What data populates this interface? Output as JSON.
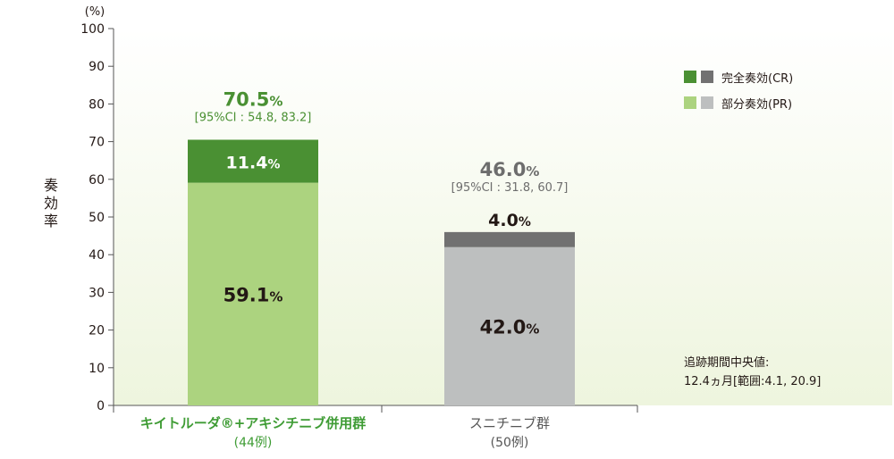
{
  "chart_data": {
    "type": "bar",
    "stacked": true,
    "y_unit": "(%)",
    "ylabel": "奏効率",
    "ylim": [
      0,
      100
    ],
    "yticks": [
      0,
      10,
      20,
      30,
      40,
      50,
      60,
      70,
      80,
      90,
      100
    ],
    "categories": [
      {
        "label": "キイトルーダ®+アキシチニブ併用群",
        "sub": "(44例)"
      },
      {
        "label": "スニチニブ群",
        "sub": "(50例)"
      }
    ],
    "series": [
      {
        "name": "部分奏効(PR)",
        "values": [
          59.1,
          42.0
        ],
        "labels": [
          "59.1",
          "42.0"
        ]
      },
      {
        "name": "完全奏効(CR)",
        "values": [
          11.4,
          4.0
        ],
        "labels": [
          "11.4",
          "4.0"
        ]
      }
    ],
    "totals": [
      {
        "value": 70.5,
        "label": "70.5",
        "ci": "[95%CI : 54.8, 83.2]"
      },
      {
        "value": 46.0,
        "label": "46.0",
        "ci": "[95%CI : 31.8, 60.7]"
      }
    ],
    "percent_sign": "%",
    "grid": false
  },
  "colors": {
    "pr": [
      "#acd37f",
      "#bdbfbf"
    ],
    "cr": [
      "#4a9033",
      "#717171"
    ],
    "total_text": [
      "#4a9033",
      "#6d6d6d"
    ],
    "category_text": [
      "#3f9c35",
      "#555555"
    ],
    "bg_top": "#ffffff",
    "bg_bottom": "#eef5de"
  },
  "legend": {
    "cr_label": "完全奏効(CR)",
    "pr_label": "部分奏効(PR)"
  },
  "note": {
    "line1": "追跡期間中央値:",
    "line2": "12.4ヵ月[範囲:4.1, 20.9]"
  }
}
